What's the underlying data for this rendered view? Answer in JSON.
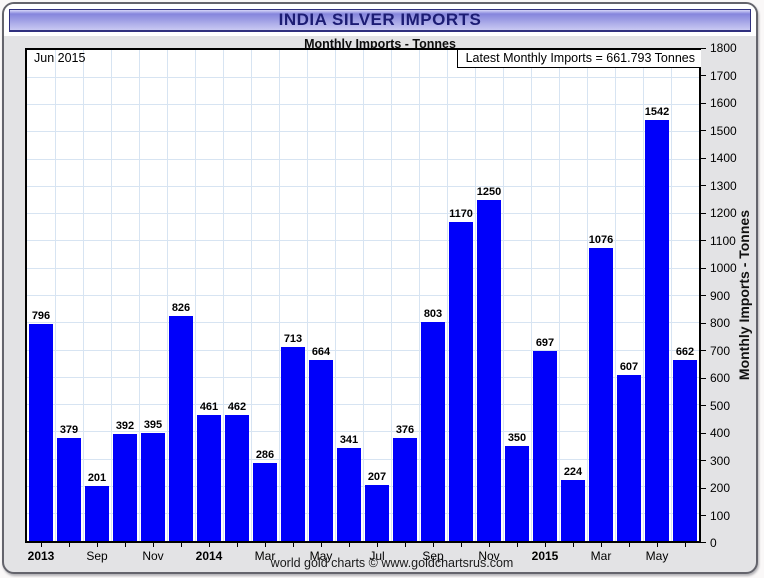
{
  "header": {
    "title": "INDIA SILVER IMPORTS",
    "subtitle": "Monthly Imports - Tonnes"
  },
  "annotations": {
    "date_note": "Jun 2015",
    "latest_note": "Latest Monthly Imports = 661.793 Tonnes"
  },
  "chart_data": {
    "type": "bar",
    "title": "INDIA SILVER IMPORTS",
    "subtitle": "Monthly Imports - Tonnes",
    "ylabel": "Monthly Imports - Tonnes",
    "ylim": [
      0,
      1800
    ],
    "ytick_step": 100,
    "y_ticks": [
      1800,
      1700,
      1600,
      1500,
      1400,
      1300,
      1200,
      1100,
      1000,
      900,
      800,
      700,
      600,
      500,
      400,
      300,
      200,
      100,
      0
    ],
    "grid": true,
    "legend": "none",
    "bar_color": "#0000fa",
    "grid_color": "#d7e4f2",
    "values": [
      796,
      379,
      201,
      392,
      395,
      826,
      461,
      462,
      286,
      713,
      664,
      341,
      207,
      376,
      803,
      1170,
      1250,
      350,
      697,
      224,
      1076,
      607,
      1542,
      662
    ],
    "x_ticks": [
      {
        "slot": 0,
        "label": "2013",
        "bold": true
      },
      {
        "slot": 2,
        "label": "Sep",
        "bold": false
      },
      {
        "slot": 4,
        "label": "Nov",
        "bold": false
      },
      {
        "slot": 6,
        "label": "2014",
        "bold": true
      },
      {
        "slot": 8,
        "label": "Mar",
        "bold": false
      },
      {
        "slot": 10,
        "label": "May",
        "bold": false
      },
      {
        "slot": 12,
        "label": "Jul",
        "bold": false
      },
      {
        "slot": 14,
        "label": "Sep",
        "bold": false
      },
      {
        "slot": 16,
        "label": "Nov",
        "bold": false
      },
      {
        "slot": 18,
        "label": "2015",
        "bold": true
      },
      {
        "slot": 20,
        "label": "Mar",
        "bold": false
      },
      {
        "slot": 22,
        "label": "May",
        "bold": false
      }
    ]
  },
  "footer": {
    "credit": "world gold charts © www.goldchartsrus.com"
  },
  "colors": {
    "title_text": "#1c1c74",
    "frame_bg": "#e3e3e5",
    "titlebar_top": "#8585dc",
    "titlebar_bottom": "#c9c9f2",
    "plot_bg": "#ffffff"
  }
}
